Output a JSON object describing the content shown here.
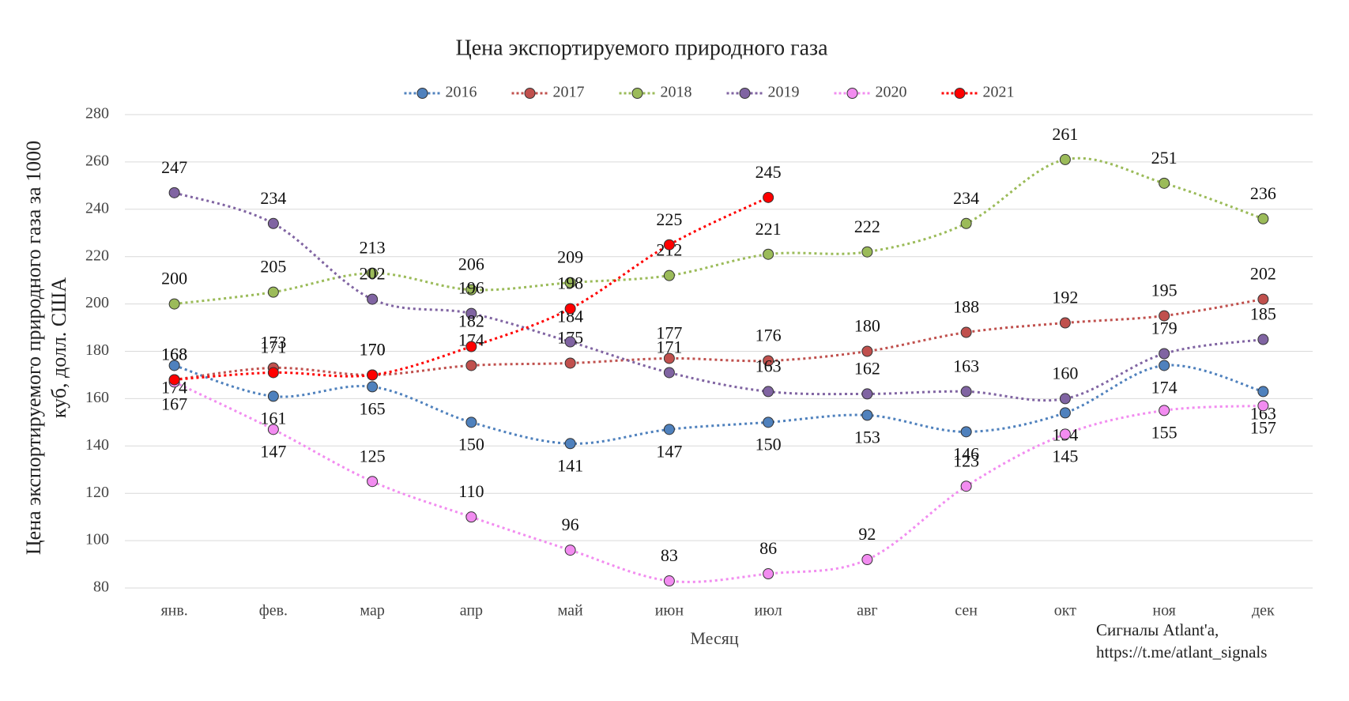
{
  "chart_data": {
    "type": "line",
    "title": "Цена экспортируемого природного газа",
    "y_label": [
      "Цена экспортируемого природного газа за 1000",
      "куб,  долл. США"
    ],
    "x_label": "Месяц",
    "annotation": [
      "Сигналы Atlant'a,",
      "https://t.me/atlant_signals"
    ],
    "categories": [
      "янв.",
      "фев.",
      "мар",
      "апр",
      "май",
      "июн",
      "июл",
      "авг",
      "сен",
      "окт",
      "ноя",
      "дек"
    ],
    "series": [
      {
        "name": "2016",
        "color": "#4f81bd",
        "values": [
          174,
          161,
          165,
          150,
          141,
          147,
          150,
          153,
          146,
          154,
          174,
          163
        ]
      },
      {
        "name": "2017",
        "color": "#c0504d",
        "values": [
          168,
          173,
          170,
          174,
          175,
          177,
          176,
          180,
          188,
          192,
          195,
          202
        ]
      },
      {
        "name": "2018",
        "color": "#9bbb59",
        "values": [
          200,
          205,
          213,
          206,
          209,
          212,
          221,
          222,
          234,
          261,
          251,
          236
        ]
      },
      {
        "name": "2019",
        "color": "#8064a2",
        "values": [
          247,
          234,
          202,
          196,
          184,
          171,
          163,
          162,
          163,
          160,
          179,
          185
        ]
      },
      {
        "name": "2020",
        "color": "#f28cf0",
        "values": [
          167,
          147,
          125,
          110,
          96,
          83,
          86,
          92,
          123,
          145,
          155,
          157
        ]
      },
      {
        "name": "2021",
        "color": "#ff0000",
        "values": [
          168,
          171,
          170,
          182,
          198,
          225,
          245,
          null,
          null,
          null,
          null,
          null
        ]
      }
    ],
    "ylim": [
      80,
      280
    ],
    "yticks": [
      80,
      100,
      120,
      140,
      160,
      180,
      200,
      220,
      240,
      260,
      280
    ],
    "grid": true,
    "legend": "top"
  }
}
